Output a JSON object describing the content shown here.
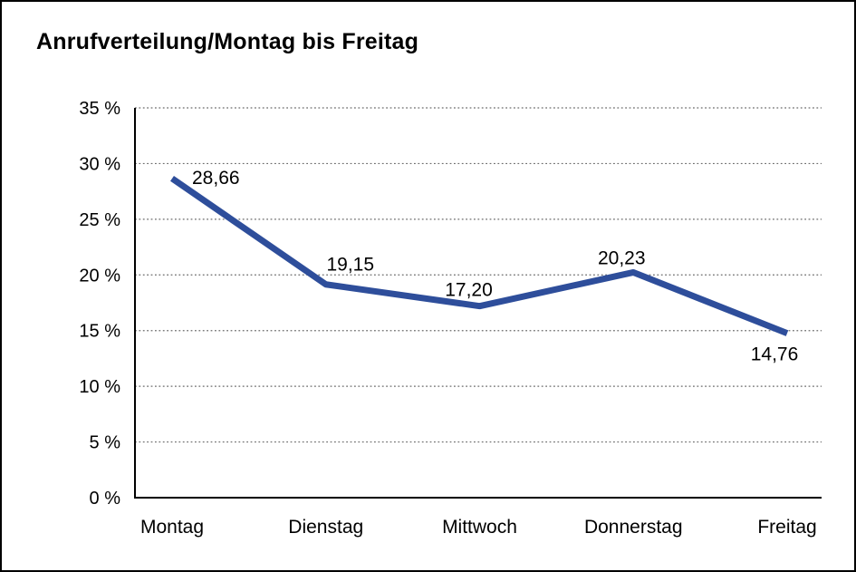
{
  "chart_data": {
    "type": "line",
    "title": "Anrufverteilung/Montag bis Freitag",
    "categories": [
      "Montag",
      "Dienstag",
      "Mittwoch",
      "Donnerstag",
      "Freitag"
    ],
    "values": [
      28.66,
      19.15,
      17.2,
      20.23,
      14.76
    ],
    "data_labels": [
      "28,66",
      "19,15",
      "17,20",
      "20,23",
      "14,76"
    ],
    "xlabel": "",
    "ylabel": "",
    "ylim": [
      0,
      35
    ],
    "y_ticks": [
      0,
      5,
      10,
      15,
      20,
      25,
      30,
      35
    ],
    "y_tick_labels": [
      "0 %",
      "5 %",
      "10 %",
      "15 %",
      "20 %",
      "25 %",
      "30 %",
      "35 %"
    ],
    "grid": "horizontal-dotted",
    "legend": "none",
    "line_color": "#2e4e9b",
    "grid_color": "#6b6b6b",
    "axis_color": "#000000",
    "text_color": "#000000",
    "background": "#ffffff",
    "border_color": "#000000"
  }
}
